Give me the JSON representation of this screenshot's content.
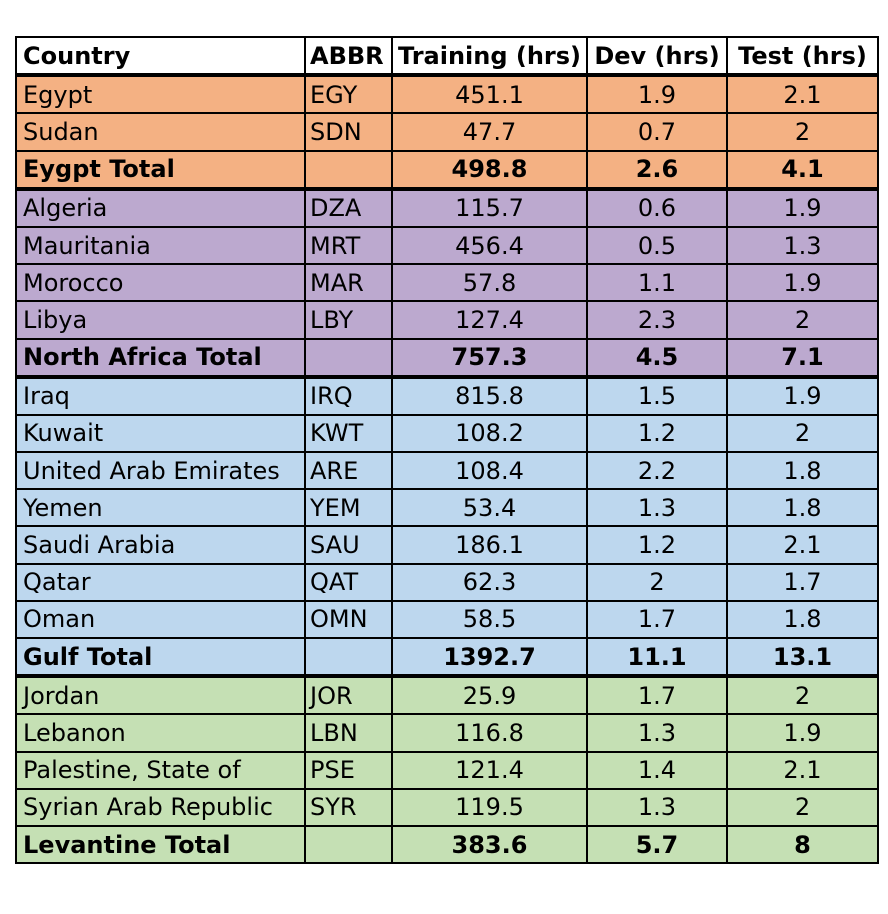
{
  "headers": {
    "country": "Country",
    "abbr": "ABBR",
    "training": "Training (hrs)",
    "dev": "Dev (hrs)",
    "test": "Test (hrs)"
  },
  "groups": {
    "egypt": {
      "rows": [
        {
          "country": "Egypt",
          "abbr": "EGY",
          "training": "451.1",
          "dev": "1.9",
          "test": "2.1"
        },
        {
          "country": "Sudan",
          "abbr": "SDN",
          "training": "47.7",
          "dev": "0.7",
          "test": "2"
        }
      ],
      "total": {
        "label": "Eygpt Total",
        "training": "498.8",
        "dev": "2.6",
        "test": "4.1"
      }
    },
    "north_africa": {
      "rows": [
        {
          "country": "Algeria",
          "abbr": "DZA",
          "training": "115.7",
          "dev": "0.6",
          "test": "1.9"
        },
        {
          "country": "Mauritania",
          "abbr": "MRT",
          "training": "456.4",
          "dev": "0.5",
          "test": "1.3"
        },
        {
          "country": "Morocco",
          "abbr": "MAR",
          "training": "57.8",
          "dev": "1.1",
          "test": "1.9"
        },
        {
          "country": "Libya",
          "abbr": "LBY",
          "training": "127.4",
          "dev": "2.3",
          "test": "2"
        }
      ],
      "total": {
        "label": "North Africa Total",
        "training": "757.3",
        "dev": "4.5",
        "test": "7.1"
      }
    },
    "gulf": {
      "rows": [
        {
          "country": "Iraq",
          "abbr": "IRQ",
          "training": "815.8",
          "dev": "1.5",
          "test": "1.9"
        },
        {
          "country": "Kuwait",
          "abbr": "KWT",
          "training": "108.2",
          "dev": "1.2",
          "test": "2"
        },
        {
          "country": "United Arab Emirates",
          "abbr": "ARE",
          "training": "108.4",
          "dev": "2.2",
          "test": "1.8"
        },
        {
          "country": "Yemen",
          "abbr": "YEM",
          "training": "53.4",
          "dev": "1.3",
          "test": "1.8"
        },
        {
          "country": "Saudi Arabia",
          "abbr": "SAU",
          "training": "186.1",
          "dev": "1.2",
          "test": "2.1"
        },
        {
          "country": "Qatar",
          "abbr": "QAT",
          "training": "62.3",
          "dev": "2",
          "test": "1.7"
        },
        {
          "country": "Oman",
          "abbr": "OMN",
          "training": "58.5",
          "dev": "1.7",
          "test": "1.8"
        }
      ],
      "total": {
        "label": "Gulf Total",
        "training": "1392.7",
        "dev": "11.1",
        "test": "13.1"
      }
    },
    "levantine": {
      "rows": [
        {
          "country": "Jordan",
          "abbr": "JOR",
          "training": "25.9",
          "dev": "1.7",
          "test": "2"
        },
        {
          "country": "Lebanon",
          "abbr": "LBN",
          "training": "116.8",
          "dev": "1.3",
          "test": "1.9"
        },
        {
          "country": "Palestine, State of",
          "abbr": "PSE",
          "training": "121.4",
          "dev": "1.4",
          "test": "2.1"
        },
        {
          "country": "Syrian Arab Republic",
          "abbr": "SYR",
          "training": "119.5",
          "dev": "1.3",
          "test": "2"
        }
      ],
      "total": {
        "label": "Levantine Total",
        "training": "383.6",
        "dev": "5.7",
        "test": "8"
      }
    }
  },
  "colors": {
    "egypt": "#f4b183",
    "north_africa": "#bca9cf",
    "gulf": "#bdd7ee",
    "levantine": "#c5e0b4"
  }
}
